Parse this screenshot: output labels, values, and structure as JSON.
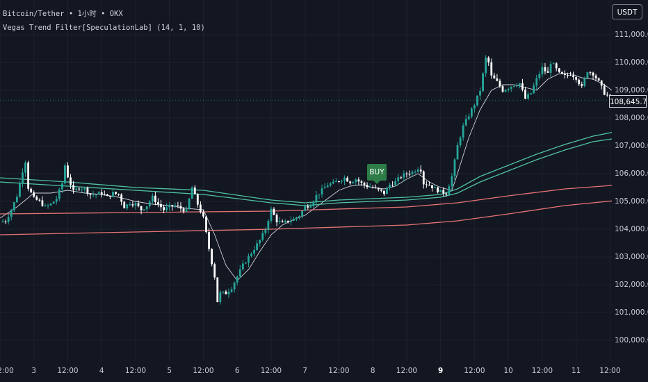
{
  "legend": {
    "symbol_line": "Bitcoin/Tether • 1小时 • OKX",
    "indicator_line": "Vegas Trend Filter[SpeculationLab] (14, 1, 10)"
  },
  "currency_button": "USDT",
  "last_price": "108,645.7",
  "buy_label": "BUY",
  "colors": {
    "background": "#131722",
    "grid": "#1e222d",
    "candle_up": "#26a69a",
    "candle_down": "#ffffff",
    "ema_fast": "#d1d4dc",
    "tunnel_green": "#4fc3a1",
    "tunnel_red": "#e57373",
    "buy": "#2e7d48"
  },
  "chart_data": {
    "type": "candlestick",
    "y_axis": {
      "ylim": [
        99300,
        112300
      ],
      "ticks": [
        {
          "value": 100000,
          "label": "100,000.0"
        },
        {
          "value": 101000,
          "label": "101,000.0"
        },
        {
          "value": 102000,
          "label": "102,000.0"
        },
        {
          "value": 103000,
          "label": "103,000.0"
        },
        {
          "value": 104000,
          "label": "104,000.0"
        },
        {
          "value": 105000,
          "label": "105,000.0"
        },
        {
          "value": 106000,
          "label": "106,000.0"
        },
        {
          "value": 107000,
          "label": "107,000.0"
        },
        {
          "value": 108000,
          "label": "108,000.0"
        },
        {
          "value": 109000,
          "label": "109,000.0"
        },
        {
          "value": 110000,
          "label": "110,000.0"
        },
        {
          "value": 111000,
          "label": "111,000.0"
        }
      ]
    },
    "x_axis": {
      "range_hours": [
        0,
        210
      ],
      "ticks": [
        {
          "hour": 0,
          "label": "2:00",
          "bold": false
        },
        {
          "hour": 12,
          "label": "3",
          "bold": false
        },
        {
          "hour": 24,
          "label": "12:00",
          "bold": false
        },
        {
          "hour": 36,
          "label": "4",
          "bold": false
        },
        {
          "hour": 48,
          "label": "12:00",
          "bold": false
        },
        {
          "hour": 60,
          "label": "5",
          "bold": false
        },
        {
          "hour": 72,
          "label": "12:00",
          "bold": false
        },
        {
          "hour": 84,
          "label": "6",
          "bold": false
        },
        {
          "hour": 96,
          "label": "12:00",
          "bold": false
        },
        {
          "hour": 108,
          "label": "7",
          "bold": false
        },
        {
          "hour": 120,
          "label": "12:00",
          "bold": false
        },
        {
          "hour": 132,
          "label": "8",
          "bold": false
        },
        {
          "hour": 144,
          "label": "12:00",
          "bold": false
        },
        {
          "hour": 156,
          "label": "9",
          "bold": true
        },
        {
          "hour": 168,
          "label": "12:00",
          "bold": false
        },
        {
          "hour": 180,
          "label": "10",
          "bold": false
        },
        {
          "hour": 192,
          "label": "12:00",
          "bold": false
        },
        {
          "hour": 204,
          "label": "11",
          "bold": false
        },
        {
          "hour": 216,
          "label": "12:00",
          "bold": false
        }
      ]
    },
    "price_path": [
      [
        0,
        104250
      ],
      [
        2,
        104300
      ],
      [
        4,
        104700
      ],
      [
        6,
        105200
      ],
      [
        8,
        106100
      ],
      [
        9,
        106450
      ],
      [
        10,
        105500
      ],
      [
        12,
        105100
      ],
      [
        14,
        105000
      ],
      [
        16,
        104800
      ],
      [
        18,
        104900
      ],
      [
        20,
        105100
      ],
      [
        22,
        105650
      ],
      [
        23,
        106300
      ],
      [
        24,
        105900
      ],
      [
        26,
        105350
      ],
      [
        28,
        105500
      ],
      [
        30,
        105450
      ],
      [
        32,
        105250
      ],
      [
        34,
        105250
      ],
      [
        36,
        105300
      ],
      [
        38,
        105150
      ],
      [
        40,
        105300
      ],
      [
        42,
        105250
      ],
      [
        44,
        104800
      ],
      [
        46,
        104950
      ],
      [
        48,
        104900
      ],
      [
        50,
        104700
      ],
      [
        52,
        104850
      ],
      [
        54,
        105150
      ],
      [
        56,
        104900
      ],
      [
        58,
        104700
      ],
      [
        60,
        104800
      ],
      [
        62,
        104850
      ],
      [
        64,
        104750
      ],
      [
        66,
        104650
      ],
      [
        68,
        105500
      ],
      [
        70,
        104900
      ],
      [
        72,
        104400
      ],
      [
        74,
        103300
      ],
      [
        76,
        102300
      ],
      [
        77,
        101400
      ],
      [
        78,
        101700
      ],
      [
        80,
        101700
      ],
      [
        82,
        101900
      ],
      [
        84,
        102300
      ],
      [
        86,
        102700
      ],
      [
        88,
        103000
      ],
      [
        90,
        103300
      ],
      [
        92,
        103600
      ],
      [
        94,
        104000
      ],
      [
        96,
        104700
      ],
      [
        98,
        104300
      ],
      [
        100,
        104200
      ],
      [
        102,
        104300
      ],
      [
        104,
        104350
      ],
      [
        106,
        104500
      ],
      [
        108,
        104800
      ],
      [
        110,
        104900
      ],
      [
        112,
        105200
      ],
      [
        114,
        105400
      ],
      [
        116,
        105600
      ],
      [
        118,
        105650
      ],
      [
        120,
        105750
      ],
      [
        122,
        105850
      ],
      [
        124,
        105700
      ],
      [
        126,
        105800
      ],
      [
        128,
        105650
      ],
      [
        130,
        105550
      ],
      [
        132,
        105500
      ],
      [
        134,
        105400
      ],
      [
        136,
        105300
      ],
      [
        138,
        105600
      ],
      [
        140,
        105700
      ],
      [
        142,
        105900
      ],
      [
        144,
        106000
      ],
      [
        146,
        106050
      ],
      [
        148,
        106200
      ],
      [
        149,
        106150
      ],
      [
        150,
        105650
      ],
      [
        152,
        105600
      ],
      [
        154,
        105450
      ],
      [
        156,
        105350
      ],
      [
        158,
        105300
      ],
      [
        160,
        105900
      ],
      [
        162,
        107000
      ],
      [
        164,
        107700
      ],
      [
        166,
        108100
      ],
      [
        168,
        108500
      ],
      [
        170,
        109000
      ],
      [
        172,
        110150
      ],
      [
        173,
        110000
      ],
      [
        174,
        109500
      ],
      [
        176,
        109300
      ],
      [
        178,
        109000
      ],
      [
        180,
        109100
      ],
      [
        182,
        109200
      ],
      [
        184,
        109250
      ],
      [
        186,
        108700
      ],
      [
        188,
        108900
      ],
      [
        190,
        109400
      ],
      [
        192,
        109800
      ],
      [
        194,
        109600
      ],
      [
        195,
        110000
      ],
      [
        196,
        109900
      ],
      [
        198,
        109600
      ],
      [
        200,
        109500
      ],
      [
        202,
        109600
      ],
      [
        204,
        109450
      ],
      [
        206,
        109100
      ],
      [
        208,
        109700
      ],
      [
        210,
        109600
      ],
      [
        212,
        109300
      ],
      [
        214,
        108900
      ],
      [
        216,
        108750
      ],
      [
        218,
        108650
      ],
      [
        220,
        108645
      ]
    ],
    "series": [
      {
        "name": "EMA fast",
        "color": "#d1d4dc",
        "points": [
          [
            0,
            104400
          ],
          [
            6,
            104800
          ],
          [
            12,
            105300
          ],
          [
            18,
            105300
          ],
          [
            24,
            105400
          ],
          [
            30,
            105300
          ],
          [
            36,
            105250
          ],
          [
            42,
            105150
          ],
          [
            48,
            105000
          ],
          [
            54,
            104900
          ],
          [
            60,
            104850
          ],
          [
            66,
            104750
          ],
          [
            72,
            104700
          ],
          [
            76,
            103800
          ],
          [
            80,
            102700
          ],
          [
            84,
            102150
          ],
          [
            88,
            102550
          ],
          [
            92,
            103200
          ],
          [
            96,
            103800
          ],
          [
            100,
            104150
          ],
          [
            104,
            104350
          ],
          [
            108,
            104500
          ],
          [
            112,
            104800
          ],
          [
            116,
            105100
          ],
          [
            120,
            105400
          ],
          [
            124,
            105550
          ],
          [
            128,
            105600
          ],
          [
            132,
            105500
          ],
          [
            136,
            105450
          ],
          [
            140,
            105550
          ],
          [
            144,
            105800
          ],
          [
            148,
            106000
          ],
          [
            152,
            105700
          ],
          [
            156,
            105500
          ],
          [
            160,
            105400
          ],
          [
            162,
            106000
          ],
          [
            166,
            107300
          ],
          [
            170,
            108300
          ],
          [
            174,
            109000
          ],
          [
            178,
            109200
          ],
          [
            182,
            109200
          ],
          [
            186,
            109100
          ],
          [
            190,
            109000
          ],
          [
            194,
            109400
          ],
          [
            198,
            109600
          ],
          [
            202,
            109600
          ],
          [
            206,
            109450
          ],
          [
            210,
            109400
          ],
          [
            214,
            109200
          ],
          [
            218,
            108900
          ],
          [
            220,
            108800
          ]
        ]
      },
      {
        "name": "Tunnel green upper",
        "color": "#4fc3a1",
        "points": [
          [
            0,
            105850
          ],
          [
            24,
            105700
          ],
          [
            48,
            105500
          ],
          [
            72,
            105400
          ],
          [
            96,
            105050
          ],
          [
            108,
            104950
          ],
          [
            120,
            105050
          ],
          [
            144,
            105150
          ],
          [
            156,
            105250
          ],
          [
            162,
            105450
          ],
          [
            170,
            105900
          ],
          [
            180,
            106300
          ],
          [
            190,
            106700
          ],
          [
            200,
            107050
          ],
          [
            210,
            107350
          ],
          [
            220,
            107550
          ]
        ]
      },
      {
        "name": "Tunnel green lower",
        "color": "#4fc3a1",
        "points": [
          [
            0,
            105700
          ],
          [
            24,
            105550
          ],
          [
            48,
            105400
          ],
          [
            72,
            105250
          ],
          [
            96,
            104950
          ],
          [
            108,
            104850
          ],
          [
            120,
            104950
          ],
          [
            144,
            105050
          ],
          [
            156,
            105150
          ],
          [
            162,
            105300
          ],
          [
            170,
            105700
          ],
          [
            180,
            106100
          ],
          [
            190,
            106500
          ],
          [
            200,
            106850
          ],
          [
            210,
            107150
          ],
          [
            220,
            107300
          ]
        ]
      },
      {
        "name": "Tunnel red upper",
        "color": "#e57373",
        "points": [
          [
            0,
            104550
          ],
          [
            48,
            104600
          ],
          [
            96,
            104650
          ],
          [
            144,
            104800
          ],
          [
            162,
            104950
          ],
          [
            180,
            105200
          ],
          [
            200,
            105450
          ],
          [
            220,
            105600
          ]
        ]
      },
      {
        "name": "Tunnel red lower",
        "color": "#e57373",
        "points": [
          [
            0,
            103800
          ],
          [
            48,
            103900
          ],
          [
            96,
            104000
          ],
          [
            144,
            104150
          ],
          [
            162,
            104300
          ],
          [
            180,
            104550
          ],
          [
            200,
            104850
          ],
          [
            220,
            105050
          ]
        ]
      }
    ],
    "annotations": [
      {
        "text": "BUY",
        "hour": 136,
        "value": 105400
      }
    ]
  }
}
